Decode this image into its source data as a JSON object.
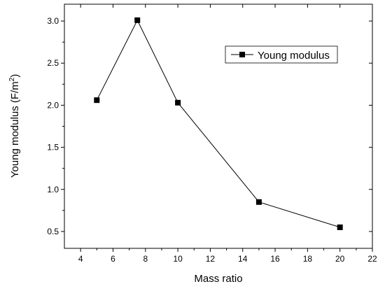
{
  "chart_data": {
    "type": "line",
    "title": "",
    "xlabel": "Mass ratio",
    "ylabel_main": "Young modulus (F/m",
    "ylabel_sup": "2",
    "ylabel_end": ")",
    "xlim": [
      3,
      22
    ],
    "ylim": [
      0.3,
      3.2
    ],
    "xticks": [
      4,
      6,
      8,
      10,
      12,
      14,
      16,
      18,
      20,
      22
    ],
    "yticks": [
      0.5,
      1.0,
      1.5,
      2.0,
      2.5,
      3.0
    ],
    "ytick_labels": [
      "0.5",
      "1.0",
      "1.5",
      "2.0",
      "2.5",
      "3.0"
    ],
    "grid": false,
    "legend_position": "top-right",
    "series": [
      {
        "name": "Young modulus",
        "color": "#000000",
        "marker": "square",
        "x": [
          5,
          7.5,
          10,
          15,
          20
        ],
        "y": [
          2.06,
          3.01,
          2.03,
          0.85,
          0.55
        ]
      }
    ]
  }
}
